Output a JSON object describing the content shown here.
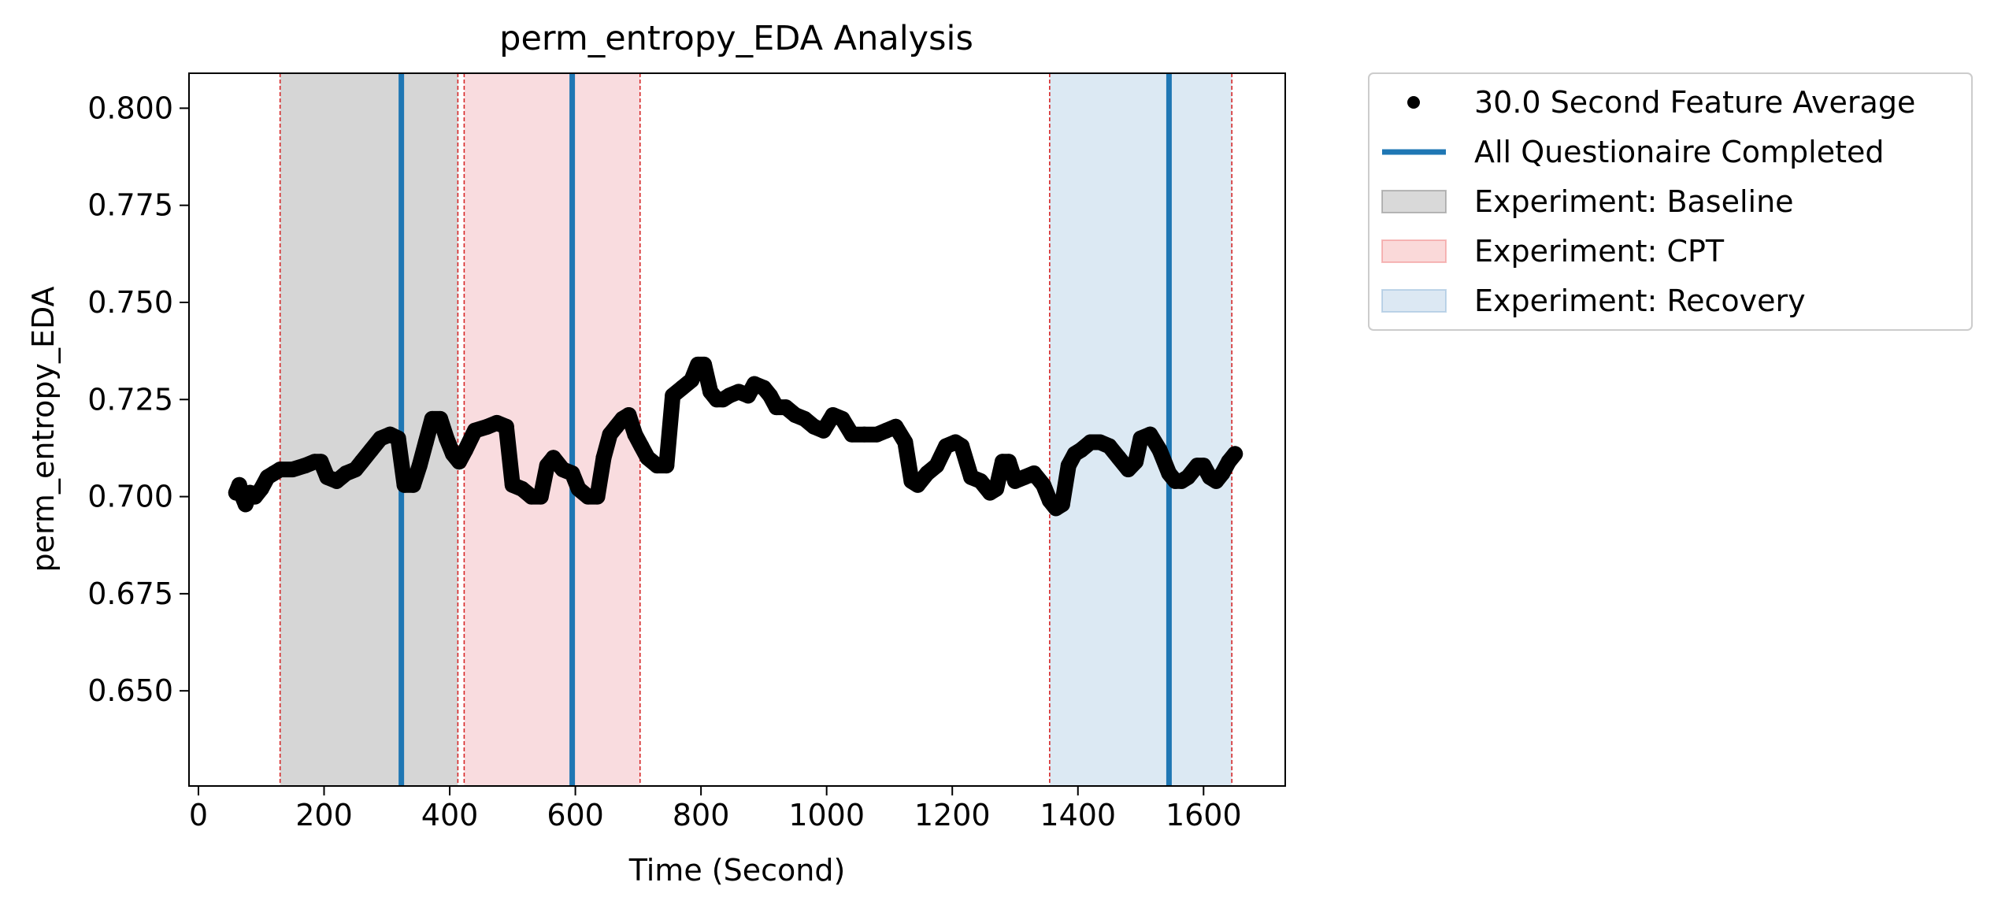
{
  "chart_data": {
    "type": "scatter",
    "title": "perm_entropy_EDA Analysis",
    "xlabel": "Time (Second)",
    "ylabel": "perm_entropy_EDA",
    "xlim": [
      -15,
      1730
    ],
    "ylim": [
      0.6255,
      0.809
    ],
    "x_ticks": [
      0,
      200,
      400,
      600,
      800,
      1000,
      1200,
      1400,
      1600
    ],
    "x_tick_labels": [
      "0",
      "200",
      "400",
      "600",
      "800",
      "1000",
      "1200",
      "1400",
      "1600"
    ],
    "y_ticks": [
      0.65,
      0.675,
      0.7,
      0.725,
      0.75,
      0.775,
      0.8
    ],
    "y_tick_labels": [
      "0.650",
      "0.675",
      "0.700",
      "0.725",
      "0.750",
      "0.775",
      "0.800"
    ],
    "grid": false,
    "legend_position": "outside-top-right",
    "legend": [
      {
        "label": "30.0 Second Feature Average",
        "kind": "marker",
        "color": "#000000"
      },
      {
        "label": "All Questionaire Completed",
        "kind": "line",
        "color": "#1f77b4"
      },
      {
        "label": "Experiment: Baseline",
        "kind": "patch",
        "color": "#808080"
      },
      {
        "label": "Experiment: CPT",
        "kind": "patch",
        "color": "#f08080"
      },
      {
        "label": "Experiment: Recovery",
        "kind": "patch",
        "color": "#8cb4d8"
      }
    ],
    "phases": [
      {
        "name": "Experiment: Baseline",
        "start": 130,
        "end": 413,
        "color": "#d6d6d6"
      },
      {
        "name": "Experiment: CPT",
        "start": 423,
        "end": 703,
        "color": "#f9dcdf"
      },
      {
        "name": "Experiment: Recovery",
        "start": 1355,
        "end": 1645,
        "color": "#dce9f3"
      }
    ],
    "phase_boundary_color": "#d62728",
    "questionnaire_lines": {
      "name": "All Questionaire Completed",
      "x": [
        323,
        595,
        1545
      ],
      "color": "#1f77b4"
    },
    "series": [
      {
        "name": "30.0 Second Feature Average",
        "color": "#000000",
        "points": [
          [
            60,
            0.701
          ],
          [
            65,
            0.703
          ],
          [
            70,
            0.7
          ],
          [
            75,
            0.698
          ],
          [
            82,
            0.701
          ],
          [
            90,
            0.7
          ],
          [
            100,
            0.702
          ],
          [
            110,
            0.705
          ],
          [
            120,
            0.706
          ],
          [
            130,
            0.707
          ],
          [
            150,
            0.707
          ],
          [
            170,
            0.708
          ],
          [
            185,
            0.709
          ],
          [
            195,
            0.709
          ],
          [
            205,
            0.705
          ],
          [
            220,
            0.704
          ],
          [
            235,
            0.706
          ],
          [
            250,
            0.707
          ],
          [
            260,
            0.709
          ],
          [
            275,
            0.712
          ],
          [
            290,
            0.715
          ],
          [
            305,
            0.716
          ],
          [
            318,
            0.715
          ],
          [
            328,
            0.703
          ],
          [
            342,
            0.703
          ],
          [
            352,
            0.708
          ],
          [
            362,
            0.714
          ],
          [
            372,
            0.72
          ],
          [
            385,
            0.72
          ],
          [
            395,
            0.715
          ],
          [
            405,
            0.711
          ],
          [
            415,
            0.709
          ],
          [
            425,
            0.712
          ],
          [
            440,
            0.717
          ],
          [
            460,
            0.718
          ],
          [
            475,
            0.719
          ],
          [
            490,
            0.718
          ],
          [
            500,
            0.703
          ],
          [
            515,
            0.702
          ],
          [
            530,
            0.7
          ],
          [
            545,
            0.7
          ],
          [
            555,
            0.708
          ],
          [
            565,
            0.71
          ],
          [
            580,
            0.707
          ],
          [
            595,
            0.706
          ],
          [
            605,
            0.702
          ],
          [
            620,
            0.7
          ],
          [
            635,
            0.7
          ],
          [
            645,
            0.71
          ],
          [
            655,
            0.716
          ],
          [
            665,
            0.718
          ],
          [
            675,
            0.72
          ],
          [
            685,
            0.721
          ],
          [
            695,
            0.716
          ],
          [
            705,
            0.713
          ],
          [
            715,
            0.71
          ],
          [
            730,
            0.708
          ],
          [
            745,
            0.708
          ],
          [
            755,
            0.726
          ],
          [
            770,
            0.728
          ],
          [
            785,
            0.73
          ],
          [
            795,
            0.734
          ],
          [
            805,
            0.734
          ],
          [
            815,
            0.727
          ],
          [
            825,
            0.725
          ],
          [
            835,
            0.725
          ],
          [
            845,
            0.726
          ],
          [
            860,
            0.727
          ],
          [
            875,
            0.726
          ],
          [
            885,
            0.729
          ],
          [
            900,
            0.728
          ],
          [
            910,
            0.726
          ],
          [
            920,
            0.723
          ],
          [
            935,
            0.723
          ],
          [
            950,
            0.721
          ],
          [
            965,
            0.72
          ],
          [
            980,
            0.718
          ],
          [
            995,
            0.717
          ],
          [
            1010,
            0.721
          ],
          [
            1025,
            0.72
          ],
          [
            1040,
            0.716
          ],
          [
            1060,
            0.716
          ],
          [
            1080,
            0.716
          ],
          [
            1095,
            0.717
          ],
          [
            1110,
            0.718
          ],
          [
            1125,
            0.714
          ],
          [
            1135,
            0.704
          ],
          [
            1145,
            0.703
          ],
          [
            1160,
            0.706
          ],
          [
            1175,
            0.708
          ],
          [
            1190,
            0.713
          ],
          [
            1205,
            0.714
          ],
          [
            1215,
            0.713
          ],
          [
            1230,
            0.705
          ],
          [
            1245,
            0.704
          ],
          [
            1260,
            0.701
          ],
          [
            1270,
            0.702
          ],
          [
            1280,
            0.709
          ],
          [
            1290,
            0.709
          ],
          [
            1300,
            0.704
          ],
          [
            1315,
            0.705
          ],
          [
            1330,
            0.706
          ],
          [
            1345,
            0.703
          ],
          [
            1355,
            0.699
          ],
          [
            1365,
            0.697
          ],
          [
            1375,
            0.698
          ],
          [
            1385,
            0.708
          ],
          [
            1395,
            0.711
          ],
          [
            1405,
            0.712
          ],
          [
            1420,
            0.714
          ],
          [
            1435,
            0.714
          ],
          [
            1450,
            0.713
          ],
          [
            1465,
            0.71
          ],
          [
            1480,
            0.707
          ],
          [
            1492,
            0.709
          ],
          [
            1500,
            0.715
          ],
          [
            1515,
            0.716
          ],
          [
            1530,
            0.712
          ],
          [
            1545,
            0.706
          ],
          [
            1555,
            0.704
          ],
          [
            1565,
            0.704
          ],
          [
            1575,
            0.705
          ],
          [
            1590,
            0.708
          ],
          [
            1600,
            0.708
          ],
          [
            1610,
            0.705
          ],
          [
            1620,
            0.704
          ],
          [
            1630,
            0.706
          ],
          [
            1640,
            0.709
          ],
          [
            1650,
            0.711
          ]
        ]
      }
    ]
  }
}
